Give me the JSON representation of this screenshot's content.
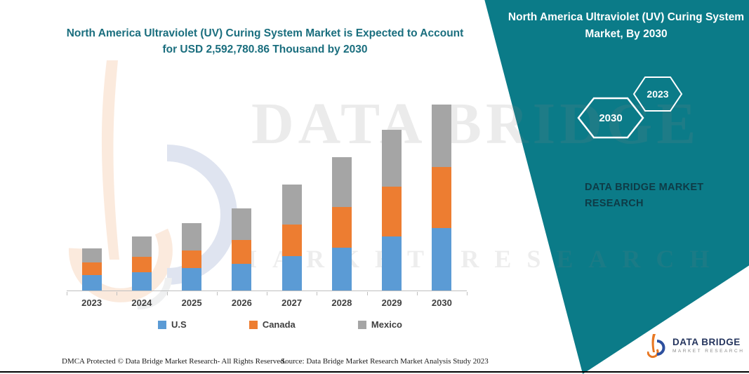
{
  "chart_data": {
    "type": "bar",
    "stacked": true,
    "title": "North America Ultraviolet (UV) Curing System Market is Expected to Account for USD 2,592,780.86 Thousand by 2030",
    "categories": [
      "2023",
      "2024",
      "2025",
      "2026",
      "2027",
      "2028",
      "2029",
      "2030"
    ],
    "series": [
      {
        "name": "U.S",
        "color": "#5B9BD5",
        "values": [
          213000,
          252000,
          310000,
          368000,
          484000,
          600000,
          755000,
          870780.86
        ]
      },
      {
        "name": "Canada",
        "color": "#ED7D31",
        "values": [
          174000,
          213000,
          252000,
          339000,
          435000,
          561000,
          697000,
          851000
        ]
      },
      {
        "name": "Mexico",
        "color": "#A5A5A5",
        "values": [
          203000,
          290000,
          377000,
          435000,
          561000,
          697000,
          793000,
          871000
        ]
      }
    ],
    "unit": "USD Thousand",
    "ylim": [
      0,
      2700000
    ],
    "grid": false,
    "legend_position": "bottom"
  },
  "side_panel": {
    "title": "North America Ultraviolet (UV) Curing System Market, By 2030",
    "hexagons": [
      "2030",
      "2023"
    ],
    "brand": "DATA BRIDGE MARKET RESEARCH"
  },
  "watermark": {
    "line1": "DATA BRIDGE",
    "line2": "MARKET RESEARCH"
  },
  "footer": {
    "dmca": "DMCA Protected © Data Bridge Market Research-  All Rights Reserved.",
    "source": "Source: Data Bridge Market Research  Market Analysis Study 2023"
  },
  "logo": {
    "name": "DATA BRIDGE",
    "tagline": "MARKET RESEARCH"
  },
  "colors": {
    "teal": "#0B7B88",
    "title_text": "#1A6E7E",
    "us_blue": "#5B9BD5",
    "canada_orange": "#ED7D31",
    "mexico_gray": "#A5A5A5"
  }
}
